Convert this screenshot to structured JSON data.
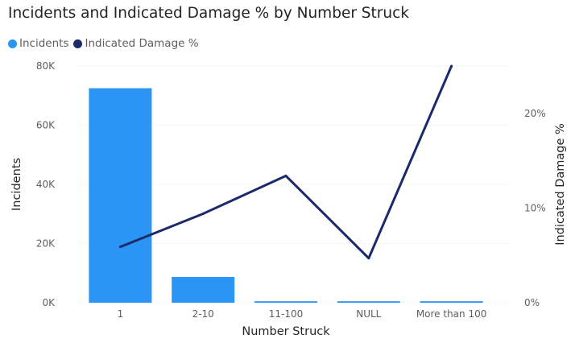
{
  "chart_data": {
    "type": "bar",
    "title": "Incidents and Indicated Damage % by Number Struck",
    "xlabel": "Number Struck",
    "ylabel": "Incidents",
    "y2label": "Indicated Damage %",
    "categories": [
      "1",
      "2-10",
      "11-100",
      "NULL",
      "More than 100"
    ],
    "ylim": [
      0,
      80000
    ],
    "y2lim": [
      0,
      25
    ],
    "yticks": [
      "0K",
      "20K",
      "40K",
      "60K",
      "80K"
    ],
    "y2ticks": [
      "0%",
      "10%",
      "20%"
    ],
    "legend_position": "top-left",
    "grid": true,
    "series": [
      {
        "name": "Incidents",
        "type": "bar",
        "axis": "left",
        "color": "#2b95f5",
        "values": [
          72500,
          8700,
          500,
          500,
          500
        ]
      },
      {
        "name": "Indicated Damage %",
        "type": "line",
        "axis": "right",
        "color": "#1b2a6b",
        "values": [
          5.9,
          9.4,
          13.4,
          4.7,
          25
        ]
      }
    ]
  }
}
